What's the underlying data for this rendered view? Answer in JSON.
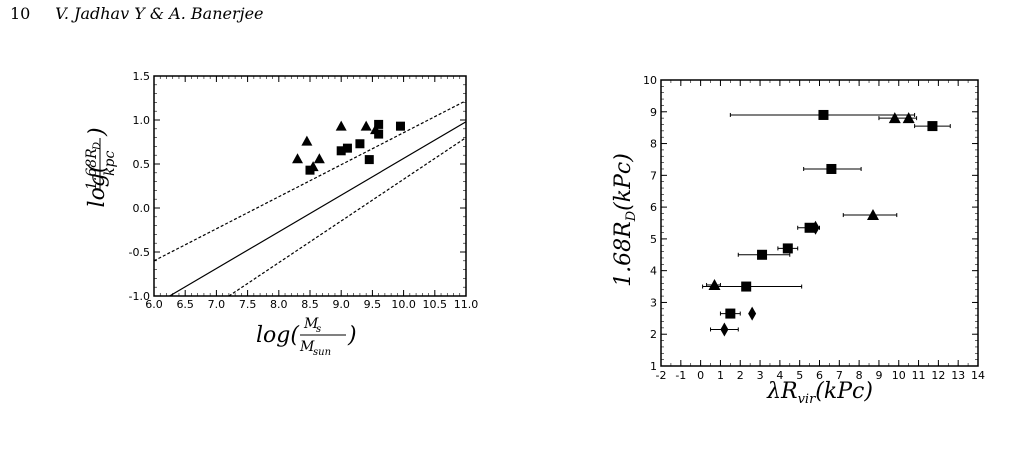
{
  "header": {
    "page_number": "10",
    "authors": "V. Jadhav Y & A. Banerjee"
  },
  "chart_data": [
    {
      "type": "scatter",
      "xlabel": "log(M_s/M_sun)",
      "ylabel": "log(1.68R_D/kpc)",
      "xlim": [
        6.0,
        11.0
      ],
      "ylim": [
        -1.0,
        1.5
      ],
      "xticks": [
        "6.0",
        "6.5",
        "7.0",
        "7.5",
        "8.0",
        "8.5",
        "9.0",
        "9.5",
        "10.0",
        "10.5",
        "11.0"
      ],
      "yticks": [
        "1.5",
        "1.0",
        "0.5",
        "0.0",
        "-0.5",
        "-1.0"
      ],
      "series": [
        {
          "marker": "triangle",
          "points": [
            [
              8.3,
              0.56
            ],
            [
              8.45,
              0.76
            ],
            [
              8.55,
              0.47
            ],
            [
              8.65,
              0.56
            ],
            [
              9.0,
              0.93
            ],
            [
              9.4,
              0.93
            ],
            [
              9.55,
              0.89
            ]
          ]
        },
        {
          "marker": "square",
          "points": [
            [
              8.5,
              0.43
            ],
            [
              9.0,
              0.65
            ],
            [
              9.1,
              0.68
            ],
            [
              9.3,
              0.73
            ],
            [
              9.45,
              0.55
            ],
            [
              9.6,
              0.95
            ],
            [
              9.6,
              0.84
            ],
            [
              9.95,
              0.93
            ]
          ]
        }
      ],
      "lines": [
        {
          "style": "solid",
          "points": [
            [
              6.25,
              -1.0
            ],
            [
              11.0,
              0.98
            ]
          ]
        },
        {
          "style": "dashed",
          "points": [
            [
              6.0,
              -0.6
            ],
            [
              11.0,
              1.22
            ]
          ]
        },
        {
          "style": "dashed",
          "points": [
            [
              7.2,
              -1.0
            ],
            [
              11.0,
              0.8
            ]
          ]
        }
      ]
    },
    {
      "type": "scatter",
      "xlabel": "λR_vir(kPc)",
      "ylabel": "1.68R_D(kPc)",
      "xlim": [
        -2,
        14
      ],
      "ylim": [
        1,
        10
      ],
      "xticks": [
        "-2",
        "-1",
        "0",
        "1",
        "2",
        "3",
        "4",
        "5",
        "6",
        "7",
        "8",
        "9",
        "10",
        "11",
        "12",
        "13",
        "14"
      ],
      "yticks": [
        "1",
        "2",
        "3",
        "4",
        "5",
        "6",
        "7",
        "8",
        "9",
        "10"
      ],
      "series": [
        {
          "marker": "square",
          "points": [
            {
              "x": 6.2,
              "y": 8.9,
              "xerr": [
                1.5,
                10.8
              ]
            },
            {
              "x": 11.7,
              "y": 8.55,
              "xerr": [
                10.8,
                12.6
              ]
            },
            {
              "x": 6.6,
              "y": 7.2,
              "xerr": [
                5.2,
                8.1
              ]
            },
            {
              "x": 5.5,
              "y": 5.35,
              "xerr": [
                4.9,
                6.0
              ]
            },
            {
              "x": 4.4,
              "y": 4.7,
              "xerr": [
                3.9,
                4.9
              ]
            },
            {
              "x": 3.1,
              "y": 4.5,
              "xerr": [
                1.9,
                4.5
              ]
            },
            {
              "x": 2.3,
              "y": 3.5,
              "xerr": [
                0.1,
                5.1
              ]
            },
            {
              "x": 1.5,
              "y": 2.65,
              "xerr": [
                1.0,
                2.0
              ]
            }
          ]
        },
        {
          "marker": "triangle",
          "points": [
            {
              "x": 9.8,
              "y": 8.8,
              "xerr": [
                9.0,
                10.9
              ]
            },
            {
              "x": 10.5,
              "y": 8.8
            },
            {
              "x": 8.7,
              "y": 5.75,
              "xerr": [
                7.2,
                9.9
              ]
            },
            {
              "x": 0.7,
              "y": 3.55,
              "xerr": [
                0.3,
                1.0
              ]
            }
          ]
        },
        {
          "marker": "diamond",
          "points": [
            {
              "x": 5.8,
              "y": 5.35
            },
            {
              "x": 1.2,
              "y": 2.15,
              "xerr": [
                0.5,
                1.9
              ]
            },
            {
              "x": 2.6,
              "y": 2.65
            }
          ]
        }
      ]
    }
  ]
}
